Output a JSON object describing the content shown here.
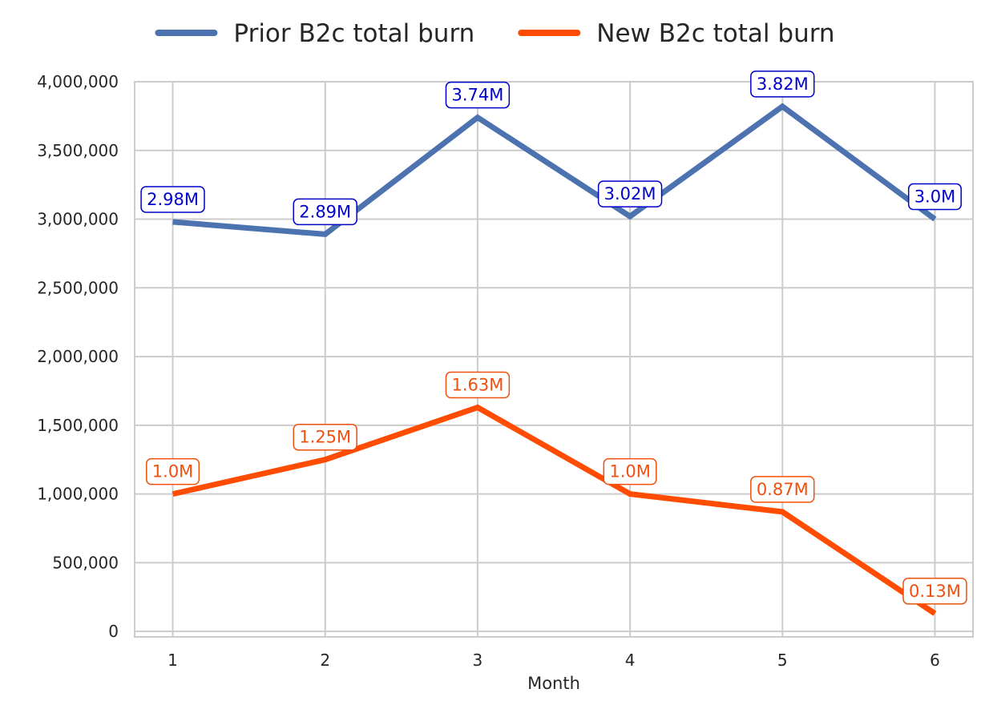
{
  "chart_data": {
    "type": "line",
    "title": "",
    "xlabel": "Month",
    "ylabel": "",
    "x": [
      1,
      2,
      3,
      4,
      5,
      6
    ],
    "x_ticks": [
      "1",
      "2",
      "3",
      "4",
      "5",
      "6"
    ],
    "xlim": [
      0.75,
      6.25
    ],
    "ylim": [
      -40000,
      4000000
    ],
    "y_ticks": [
      0,
      500000,
      1000000,
      1500000,
      2000000,
      2500000,
      3000000,
      3500000,
      4000000
    ],
    "y_tick_labels": [
      "0",
      "500,000",
      "1,000,000",
      "1,500,000",
      "2,000,000",
      "2,500,000",
      "3,000,000",
      "3,500,000",
      "4,000,000"
    ],
    "grid": true,
    "legend_position": "top-center",
    "series": [
      {
        "name": "Prior B2c total burn",
        "color": "#4c72b0",
        "label_color": "#0000cc",
        "values": [
          2980000,
          2890000,
          3740000,
          3020000,
          3820000,
          3000000
        ],
        "labels": [
          "2.98M",
          "2.89M",
          "3.74M",
          "3.02M",
          "3.82M",
          "3.0M"
        ]
      },
      {
        "name": "New B2c total burn",
        "color": "#ff4c00",
        "label_color": "#f0500f",
        "values": [
          1000000,
          1250000,
          1630000,
          1000000,
          870000,
          130000
        ],
        "labels": [
          "1.0M",
          "1.25M",
          "1.63M",
          "1.0M",
          "0.87M",
          "0.13M"
        ]
      }
    ]
  }
}
